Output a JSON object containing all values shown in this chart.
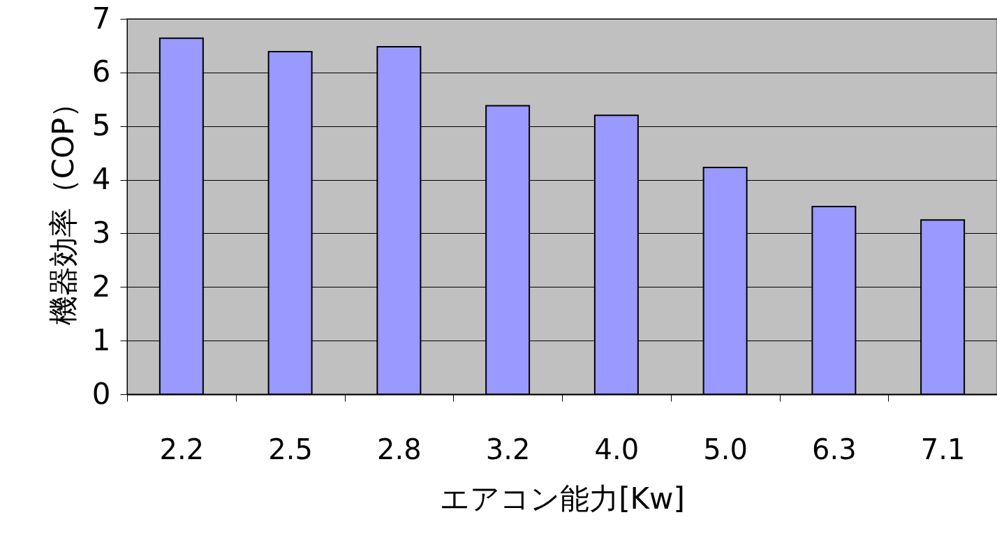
{
  "chart_data": {
    "type": "bar",
    "xlabel": "エアコン能力[Kw]",
    "ylabel": "機器効率（COP）",
    "categories": [
      "2.2",
      "2.5",
      "2.8",
      "3.2",
      "4.0",
      "5.0",
      "6.3",
      "7.1"
    ],
    "values": [
      6.64,
      6.39,
      6.48,
      5.38,
      5.2,
      4.23,
      3.5,
      3.25
    ],
    "color": "#9999ff",
    "ylim": [
      0,
      7
    ],
    "yticks": [
      0,
      1,
      2,
      3,
      4,
      5,
      6,
      7
    ],
    "grid": "y"
  }
}
